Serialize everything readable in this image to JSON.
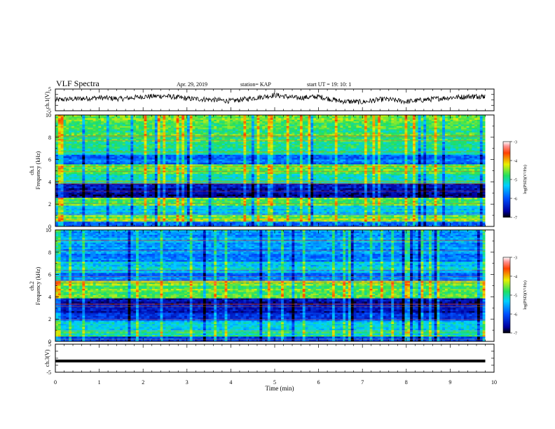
{
  "header": {
    "title": "VLF Spectra",
    "date": "Apr. 29, 2019",
    "station": "station= KAP",
    "start": "start  UT =   19: 10: 1"
  },
  "chart_data": [
    {
      "type": "line",
      "panel": "ch1-waveform",
      "ylabel": "ch.1(V)",
      "ylim": [
        -5,
        5
      ],
      "yticks": [
        "5",
        "-5"
      ],
      "x": [
        0,
        0.5,
        1,
        1.5,
        2,
        2.5,
        3,
        3.5,
        4,
        4.5,
        5,
        5.5,
        6,
        6.5,
        7,
        7.5,
        8,
        8.5,
        9,
        9.5,
        9.8
      ],
      "values": [
        0,
        0.5,
        1,
        0.5,
        1.5,
        1.8,
        0.6,
        0.2,
        -0.5,
        0.8,
        2.2,
        0.9,
        1.5,
        -0.6,
        -1,
        0.4,
        -0.8,
        0.2,
        1.1,
        1.6,
        1.7
      ]
    },
    {
      "type": "heatmap",
      "panel": "ch1-spectrogram",
      "ylabel": "ch.1",
      "ylabel2": "Frequency (kHz)",
      "ylim": [
        0,
        10
      ],
      "yticks": [
        "0",
        "2",
        "4",
        "6",
        "8",
        "10"
      ],
      "x_range_min": [
        0,
        9.8
      ],
      "colorbar": {
        "label": "log(PSD)(V²/Hz)",
        "range": [
          -7,
          -3
        ],
        "ticks": [
          "-3",
          "-4",
          "-5",
          "-6",
          "-7"
        ]
      }
    },
    {
      "type": "heatmap",
      "panel": "ch2-spectrogram",
      "ylabel": "ch.2",
      "ylabel2": "Frequency (kHz)",
      "ylim": [
        0,
        10
      ],
      "yticks": [
        "0",
        "2",
        "4",
        "6",
        "8",
        "10"
      ],
      "x_range_min": [
        0,
        9.8
      ],
      "colorbar": {
        "label": "log(PSD)(V²/Hz)",
        "range": [
          -7,
          -3
        ],
        "ticks": [
          "-3",
          "-4",
          "-5",
          "-6",
          "-7"
        ]
      }
    },
    {
      "type": "line",
      "panel": "ch3-waveform",
      "ylabel": "ch.3(V)",
      "ylim": [
        -5,
        5
      ],
      "yticks": [
        "5",
        "-5"
      ],
      "x": [
        0,
        9.8
      ],
      "values": [
        -1,
        -1
      ]
    }
  ],
  "xaxis": {
    "label": "Time  (min)",
    "ticks": [
      "0",
      "1",
      "2",
      "3",
      "4",
      "5",
      "6",
      "7",
      "8",
      "9",
      "10"
    ],
    "xlim": [
      0,
      10
    ]
  }
}
